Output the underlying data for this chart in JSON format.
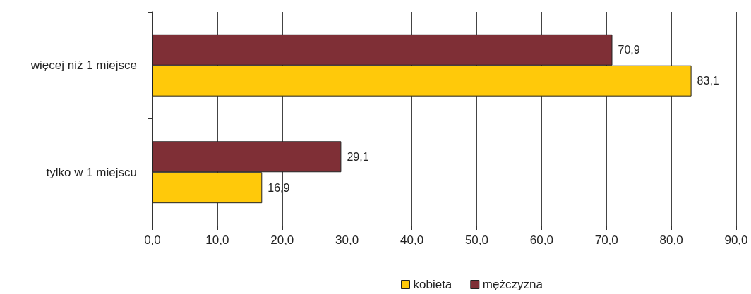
{
  "chart_data": {
    "type": "bar",
    "orientation": "horizontal",
    "categories": [
      "więcej niż 1 miejsce",
      "tylko w 1 miejscu"
    ],
    "series": [
      {
        "name": "kobieta",
        "color": "#ffc90a",
        "values": [
          83.1,
          16.9
        ],
        "value_labels": [
          "83,1",
          "16,9"
        ]
      },
      {
        "name": "mężczyzna",
        "color": "#7f2f36",
        "values": [
          70.9,
          29.1
        ],
        "value_labels": [
          "70,9",
          "29,1"
        ]
      }
    ],
    "xlim": [
      0,
      90
    ],
    "xticks": [
      {
        "value": 0,
        "label": "0,0"
      },
      {
        "value": 10,
        "label": "10,0"
      },
      {
        "value": 20,
        "label": "20,0"
      },
      {
        "value": 30,
        "label": "30,0"
      },
      {
        "value": 40,
        "label": "40,0"
      },
      {
        "value": 50,
        "label": "50,0"
      },
      {
        "value": 60,
        "label": "60,0"
      },
      {
        "value": 70,
        "label": "70,0"
      },
      {
        "value": 80,
        "label": "80,0"
      },
      {
        "value": 90,
        "label": "90,0"
      }
    ],
    "grid": "x",
    "legend": "bottom"
  }
}
